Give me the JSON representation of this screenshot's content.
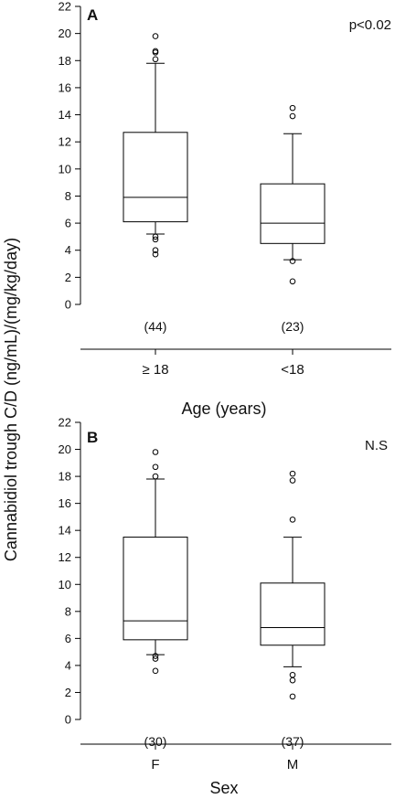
{
  "ylabel": "Cannabidiol trough C/D (ng/mL)/(mg/kg/day)",
  "chart_data": [
    {
      "type": "box",
      "panel": "A",
      "annotation": "p<0.02",
      "xlabel": "Age (years)",
      "ylim": [
        0,
        22
      ],
      "yticks": [
        0,
        2,
        4,
        6,
        8,
        10,
        12,
        14,
        16,
        18,
        20,
        22
      ],
      "categories": [
        "≥ 18",
        "<18"
      ],
      "counts": [
        "(44)",
        "(23)"
      ],
      "boxes": [
        {
          "whisker_low": 5.2,
          "q1": 6.1,
          "median": 7.9,
          "q3": 12.7,
          "whisker_high": 17.8,
          "outliers": [
            3.7,
            4.0,
            4.8,
            5.0,
            18.1,
            18.6,
            18.7,
            19.8
          ]
        },
        {
          "whisker_low": 3.3,
          "q1": 4.5,
          "median": 6.0,
          "q3": 8.9,
          "whisker_high": 12.6,
          "outliers": [
            1.7,
            3.2,
            13.9,
            14.5
          ]
        }
      ]
    },
    {
      "type": "box",
      "panel": "B",
      "annotation": "N.S",
      "xlabel": "Sex",
      "ylim": [
        0,
        22
      ],
      "yticks": [
        0,
        2,
        4,
        6,
        8,
        10,
        12,
        14,
        16,
        18,
        20,
        22
      ],
      "categories": [
        "F",
        "M"
      ],
      "counts": [
        "(30)",
        "(37)"
      ],
      "boxes": [
        {
          "whisker_low": 4.8,
          "q1": 5.9,
          "median": 7.3,
          "q3": 13.5,
          "whisker_high": 17.8,
          "outliers": [
            3.6,
            4.5,
            4.7,
            18.0,
            18.7,
            19.8
          ]
        },
        {
          "whisker_low": 3.9,
          "q1": 5.5,
          "median": 6.8,
          "q3": 10.1,
          "whisker_high": 13.5,
          "outliers": [
            1.7,
            2.9,
            3.3,
            14.8,
            17.7,
            18.2
          ]
        }
      ]
    }
  ]
}
